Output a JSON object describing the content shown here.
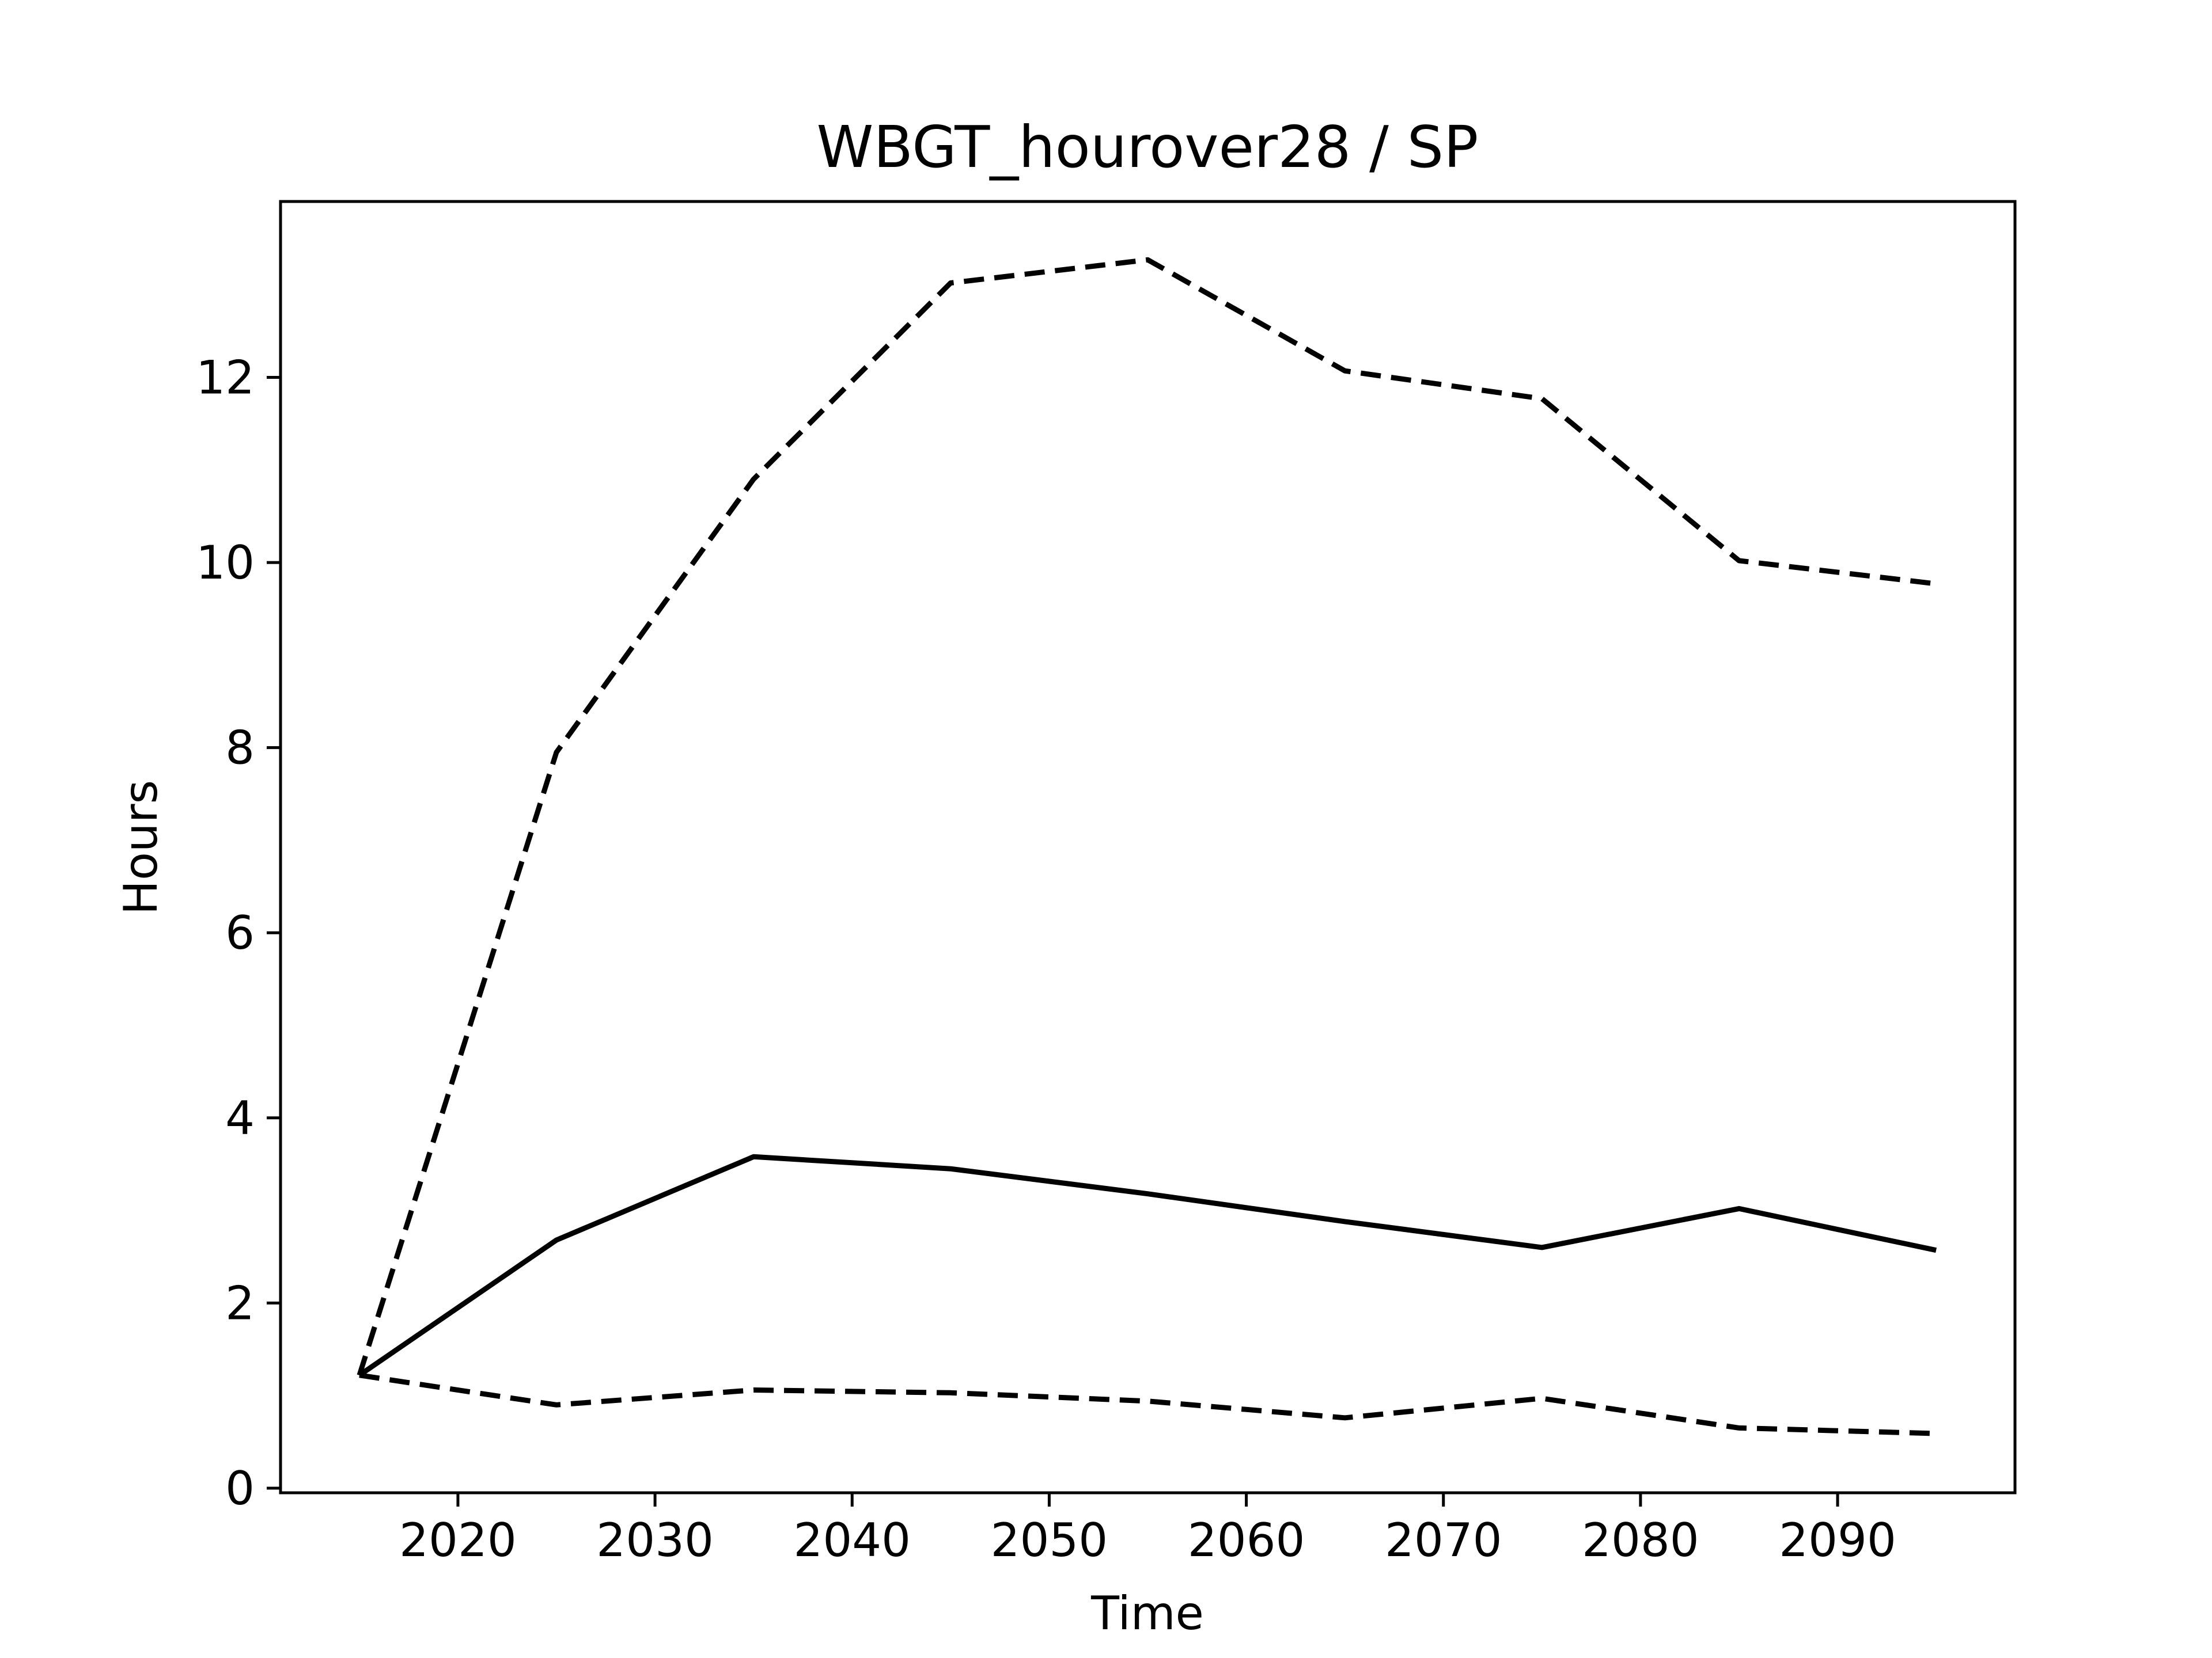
{
  "chart_data": {
    "type": "line",
    "title": "WBGT_hourover28 / SP",
    "xlabel": "Time",
    "ylabel": "Hours",
    "xlim": [
      2011,
      2099
    ],
    "ylim": [
      -0.05,
      13.9
    ],
    "x_ticks": [
      2020,
      2030,
      2040,
      2050,
      2060,
      2070,
      2080,
      2090
    ],
    "y_ticks": [
      0,
      2,
      4,
      6,
      8,
      10,
      12
    ],
    "grid": false,
    "line_color": "#000000",
    "x": [
      2015,
      2025,
      2035,
      2045,
      2055,
      2065,
      2075,
      2085,
      2095
    ],
    "series": [
      {
        "style": "dashed",
        "values": [
          1.22,
          7.95,
          10.9,
          13.02,
          13.27,
          12.07,
          11.77,
          10.02,
          9.77
        ]
      },
      {
        "style": "solid",
        "values": [
          1.22,
          2.68,
          3.58,
          3.45,
          3.18,
          2.88,
          2.6,
          3.02,
          2.57
        ]
      },
      {
        "style": "dashed",
        "values": [
          1.22,
          0.9,
          1.06,
          1.03,
          0.94,
          0.76,
          0.97,
          0.65,
          0.59
        ]
      }
    ]
  }
}
